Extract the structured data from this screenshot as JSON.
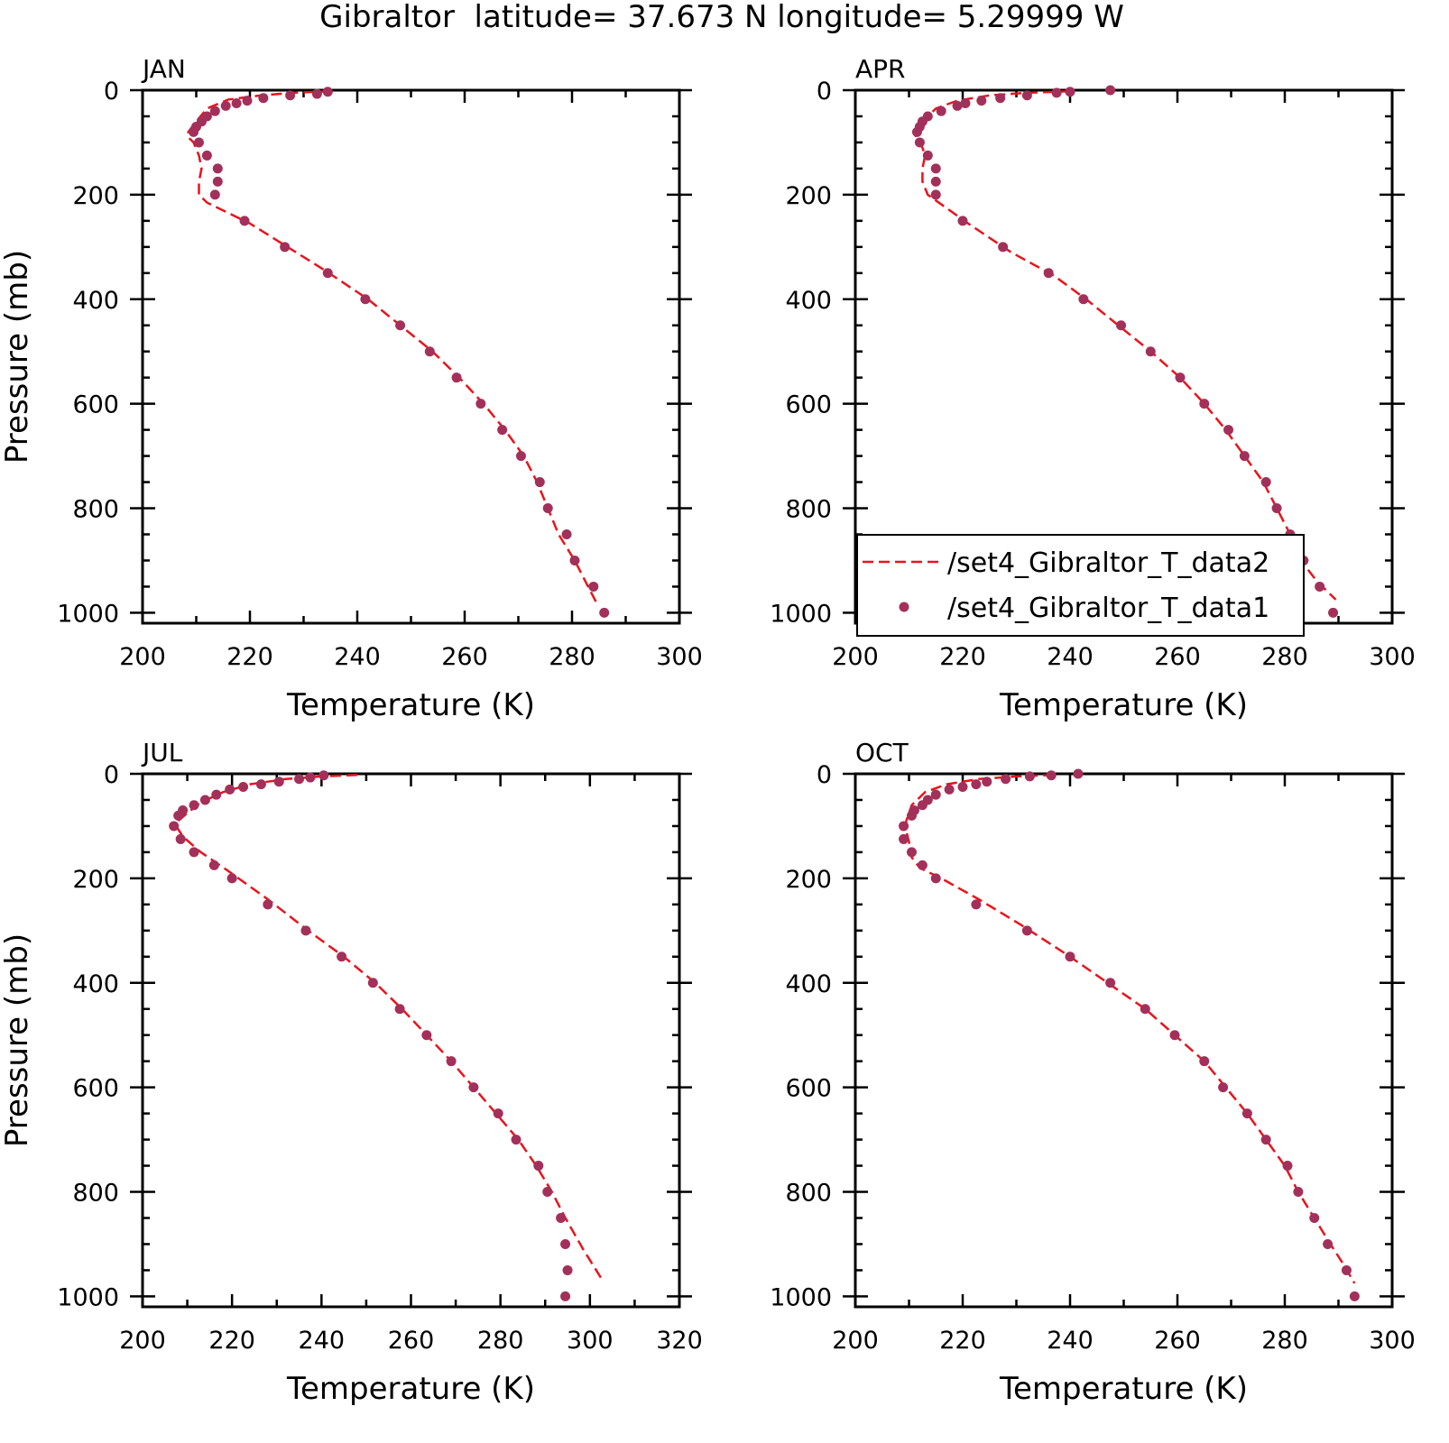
{
  "figure": {
    "title": "Gibraltor  latitude= 37.673 N longitude= 5.29999 W"
  },
  "colors": {
    "line": "#e8141c",
    "points": "#a3305a",
    "frame": "#000000",
    "background": "#ffffff"
  },
  "legend": {
    "panel": 1,
    "entries": [
      {
        "label": "/set4_Gibraltor_T_data2",
        "style": "dashed-line"
      },
      {
        "label": "/set4_Gibraltor_T_data1",
        "style": "dot"
      }
    ]
  },
  "chart_data": [
    {
      "type": "line",
      "title": "JAN",
      "xlabel": "Temperature (K)",
      "ylabel": "Pressure (mb)",
      "xlim": [
        200,
        300
      ],
      "ylim": [
        1020,
        0
      ],
      "y_inverted": true,
      "xticks": [
        200,
        220,
        240,
        260,
        280,
        300
      ],
      "yticks": [
        0,
        200,
        400,
        600,
        800,
        1000
      ],
      "series": [
        {
          "name": "/set4_Gibraltor_T_data2",
          "style": "dashed-line",
          "x": [
            235,
            228,
            222,
            216,
            212,
            210,
            208.5,
            208.5,
            209.5,
            210.5,
            211,
            210.5,
            210.5,
            212,
            220,
            227,
            234,
            242,
            248,
            254,
            259,
            263.5,
            267.5,
            271,
            273.5,
            275.5,
            277.5,
            280.5,
            283,
            284.5
          ],
          "y": [
            2,
            5,
            10,
            18,
            35,
            60,
            80,
            90,
            100,
            125,
            150,
            175,
            200,
            215,
            255,
            300,
            345,
            400,
            450,
            500,
            550,
            600,
            650,
            700,
            750,
            800,
            850,
            900,
            950,
            980
          ]
        },
        {
          "name": "/set4_Gibraltor_T_data1",
          "style": "dot",
          "x": [
            234.5,
            232.5,
            227.5,
            222.5,
            219.5,
            217.5,
            215.5,
            213.5,
            212,
            211,
            210,
            209.5,
            210.5,
            212,
            214,
            214,
            213.5,
            219,
            226.5,
            234.5,
            241.5,
            248,
            253.5,
            258.5,
            263,
            267,
            270.5,
            274,
            275.5,
            279,
            280.5,
            284,
            286
          ],
          "y": [
            3,
            7,
            10,
            15,
            20,
            25,
            30,
            40,
            50,
            60,
            70,
            80,
            100,
            125,
            150,
            175,
            200,
            250,
            300,
            350,
            400,
            450,
            500,
            550,
            600,
            650,
            700,
            750,
            800,
            850,
            900,
            950,
            1000
          ]
        }
      ]
    },
    {
      "type": "line",
      "title": "APR",
      "xlabel": "Temperature (K)",
      "ylabel": "",
      "xlim": [
        200,
        300
      ],
      "ylim": [
        1020,
        0
      ],
      "y_inverted": true,
      "xticks": [
        200,
        220,
        240,
        260,
        280,
        300
      ],
      "yticks": [
        0,
        200,
        400,
        600,
        800,
        1000
      ],
      "series": [
        {
          "name": "/set4_Gibraltor_T_data2",
          "style": "dashed-line",
          "x": [
            240,
            232,
            225,
            219,
            215,
            212.5,
            211,
            211.5,
            212.5,
            213,
            212.5,
            212.5,
            213.5,
            221,
            229,
            237,
            243,
            249,
            255,
            260.5,
            265,
            269,
            272.5,
            276,
            278.5,
            281,
            283,
            286,
            289.5
          ],
          "y": [
            2,
            5,
            10,
            20,
            35,
            60,
            80,
            95,
            110,
            125,
            150,
            175,
            200,
            255,
            310,
            355,
            400,
            450,
            500,
            550,
            600,
            650,
            700,
            750,
            800,
            850,
            900,
            940,
            975
          ]
        },
        {
          "name": "/set4_Gibraltor_T_data1",
          "style": "dot",
          "x": [
            247.5,
            240,
            237.5,
            232,
            227,
            223.5,
            220.5,
            219,
            216,
            213.5,
            212.5,
            212,
            211.5,
            212,
            213.5,
            215,
            215,
            215,
            220,
            227.5,
            236,
            242.5,
            249.5,
            255,
            260.5,
            265,
            269.5,
            272.5,
            276.5,
            278.5,
            281,
            283.5,
            286.5,
            289
          ],
          "y": [
            0,
            3,
            5,
            10,
            15,
            20,
            25,
            30,
            40,
            50,
            60,
            70,
            80,
            100,
            125,
            150,
            175,
            200,
            250,
            300,
            350,
            400,
            450,
            500,
            550,
            600,
            650,
            700,
            750,
            800,
            850,
            900,
            950,
            1000
          ]
        }
      ]
    },
    {
      "type": "line",
      "title": "JUL",
      "xlabel": "Temperature (K)",
      "ylabel": "Pressure (mb)",
      "xlim": [
        200,
        320
      ],
      "ylim": [
        1020,
        0
      ],
      "y_inverted": true,
      "xticks": [
        200,
        220,
        240,
        260,
        280,
        300,
        320
      ],
      "yticks": [
        0,
        200,
        400,
        600,
        800,
        1000
      ],
      "series": [
        {
          "name": "/set4_Gibraltor_T_data2",
          "style": "dashed-line",
          "x": [
            248,
            240,
            232,
            224,
            218,
            213,
            210,
            208,
            207.5,
            209,
            213,
            219,
            228,
            237,
            245,
            252,
            258,
            263.5,
            269,
            274,
            279,
            284,
            288,
            291.5,
            294.5,
            298.5,
            302.5
          ],
          "y": [
            2,
            5,
            10,
            20,
            35,
            55,
            75,
            90,
            100,
            120,
            150,
            185,
            240,
            300,
            350,
            400,
            450,
            500,
            550,
            600,
            650,
            700,
            750,
            800,
            850,
            910,
            965
          ]
        },
        {
          "name": "/set4_Gibraltor_T_data1",
          "style": "dot",
          "x": [
            240.5,
            237.5,
            235,
            230.5,
            226.5,
            222.5,
            219.5,
            216.5,
            214,
            211.5,
            209,
            208,
            207,
            208.5,
            211.5,
            216,
            220,
            228,
            236.5,
            244.5,
            251.5,
            257.5,
            263.5,
            269,
            274,
            279.5,
            283.5,
            288.5,
            290.5,
            293.5,
            294.5,
            295,
            294.5
          ],
          "y": [
            3,
            7,
            10,
            15,
            20,
            25,
            30,
            40,
            50,
            60,
            70,
            80,
            100,
            125,
            150,
            175,
            200,
            250,
            300,
            350,
            400,
            450,
            500,
            550,
            600,
            650,
            700,
            750,
            800,
            850,
            900,
            950,
            1000
          ]
        }
      ]
    },
    {
      "type": "line",
      "title": "OCT",
      "xlabel": "Temperature (K)",
      "ylabel": "",
      "xlim": [
        200,
        300
      ],
      "ylim": [
        1020,
        0
      ],
      "y_inverted": true,
      "xticks": [
        200,
        220,
        240,
        260,
        280,
        300
      ],
      "yticks": [
        0,
        200,
        400,
        600,
        800,
        1000
      ],
      "series": [
        {
          "name": "/set4_Gibraltor_T_data2",
          "style": "dashed-line",
          "x": [
            237,
            230,
            223,
            217,
            213,
            210.5,
            209.5,
            209.5,
            210,
            210.5,
            212,
            216,
            223,
            231,
            240,
            247,
            254,
            259.5,
            265,
            269,
            273,
            276.5,
            280,
            282.5,
            285.5,
            288.5,
            291,
            293
          ],
          "y": [
            2,
            5,
            10,
            20,
            35,
            60,
            90,
            110,
            130,
            160,
            180,
            200,
            240,
            290,
            350,
            400,
            450,
            500,
            550,
            600,
            650,
            700,
            750,
            800,
            850,
            900,
            940,
            975
          ]
        },
        {
          "name": "/set4_Gibraltor_T_data1",
          "style": "dot",
          "x": [
            241.5,
            236.5,
            232.5,
            228,
            224.5,
            222.5,
            220,
            217.5,
            215,
            213.5,
            212.5,
            211,
            210.5,
            209,
            209,
            210.5,
            212.5,
            215,
            222.5,
            232,
            240,
            247.5,
            254,
            259.5,
            265,
            268.5,
            273,
            276.5,
            280.5,
            282.5,
            285.5,
            288,
            291.5,
            293
          ],
          "y": [
            0,
            3,
            5,
            10,
            15,
            20,
            25,
            30,
            40,
            50,
            60,
            70,
            80,
            100,
            125,
            150,
            175,
            200,
            250,
            300,
            350,
            400,
            450,
            500,
            550,
            600,
            650,
            700,
            750,
            800,
            850,
            900,
            950,
            1000
          ]
        }
      ]
    }
  ]
}
